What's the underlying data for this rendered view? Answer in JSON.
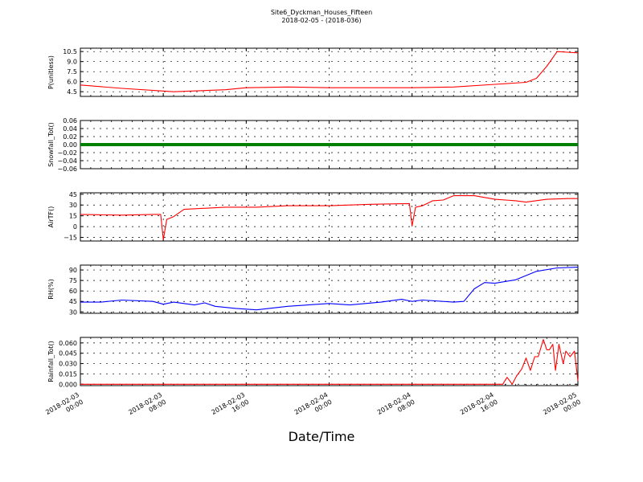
{
  "title": "Site6_Dyckman_Houses_Fifteen",
  "subtitle": "2018-02-05 - (2018-036)",
  "x_axis": {
    "label": "Date/Time",
    "ticks": [
      {
        "line1": "2018-02-03",
        "line2": "00:00"
      },
      {
        "line1": "2018-02-03",
        "line2": "08:00"
      },
      {
        "line1": "2018-02-03",
        "line2": "16:00"
      },
      {
        "line1": "2018-02-04",
        "line2": "00:00"
      },
      {
        "line1": "2018-02-04",
        "line2": "08:00"
      },
      {
        "line1": "2018-02-04",
        "line2": "16:00"
      },
      {
        "line1": "2018-02-05",
        "line2": "00:00"
      }
    ]
  },
  "chart_data": [
    {
      "type": "line",
      "ylabel": "P(unitless)",
      "ylim": [
        3.8,
        11.0
      ],
      "yticks": [
        "4.5",
        "6.0",
        "7.5",
        "9.0",
        "10.5"
      ],
      "ytick_values": [
        4.5,
        6.0,
        7.5,
        9.0,
        10.5
      ],
      "grid": true,
      "series": [
        {
          "color": "#ff0000",
          "x": [
            "2018-02-03 00:00",
            "2018-02-03 04:00",
            "2018-02-03 08:00",
            "2018-02-03 09:00",
            "2018-02-03 14:00",
            "2018-02-03 16:00",
            "2018-02-03 20:00",
            "2018-02-04 00:00",
            "2018-02-04 04:00",
            "2018-02-04 08:00",
            "2018-02-04 12:00",
            "2018-02-04 16:00",
            "2018-02-04 19:00",
            "2018-02-04 20:00",
            "2018-02-04 21:00",
            "2018-02-04 22:00",
            "2018-02-04 23:00",
            "2018-02-05 00:00"
          ],
          "y": [
            5.5,
            5.0,
            4.6,
            4.5,
            4.8,
            5.1,
            5.2,
            5.1,
            5.1,
            5.1,
            5.2,
            5.6,
            5.9,
            6.5,
            8.3,
            10.5,
            10.4,
            10.3
          ]
        }
      ]
    },
    {
      "type": "scatter",
      "ylabel": "Snowfall_Tot()",
      "ylim": [
        -0.06,
        0.06
      ],
      "yticks": [
        "−0.06",
        "−0.04",
        "−0.02",
        "0.00",
        "0.02",
        "0.04",
        "0.06"
      ],
      "ytick_values": [
        -0.06,
        -0.04,
        -0.02,
        0.0,
        0.02,
        0.04,
        0.06
      ],
      "grid": true,
      "series": [
        {
          "color": "#008000",
          "x": [
            "2018-02-03 00:00",
            "2018-02-05 00:00"
          ],
          "y": [
            0.0,
            0.0
          ]
        }
      ]
    },
    {
      "type": "line",
      "ylabel": "AirTF()",
      "ylim": [
        -20,
        47
      ],
      "yticks": [
        "−15",
        "0",
        "15",
        "30",
        "45"
      ],
      "ytick_values": [
        -15,
        0,
        15,
        30,
        45
      ],
      "grid": true,
      "series": [
        {
          "color": "#ff0000",
          "x": [
            "2018-02-03 00:00",
            "2018-02-03 04:00",
            "2018-02-03 07:00",
            "2018-02-03 07:45",
            "2018-02-03 08:00",
            "2018-02-03 08:20",
            "2018-02-03 09:00",
            "2018-02-03 10:00",
            "2018-02-03 14:00",
            "2018-02-03 17:00",
            "2018-02-03 20:00",
            "2018-02-04 00:00",
            "2018-02-04 04:00",
            "2018-02-04 07:45",
            "2018-02-04 08:00",
            "2018-02-04 08:20",
            "2018-02-04 09:00",
            "2018-02-04 10:00",
            "2018-02-04 11:00",
            "2018-02-04 12:00",
            "2018-02-04 14:00",
            "2018-02-04 16:00",
            "2018-02-04 18:00",
            "2018-02-04 19:00",
            "2018-02-04 21:00",
            "2018-02-04 23:00",
            "2018-02-05 00:00"
          ],
          "y": [
            17,
            16,
            17,
            17,
            -18,
            10,
            14,
            24,
            27,
            27,
            29,
            29,
            31,
            32,
            1,
            27,
            29,
            36,
            37,
            43,
            43,
            38,
            36,
            34,
            38,
            39,
            39
          ]
        }
      ]
    },
    {
      "type": "line",
      "ylabel": "RH(%)",
      "ylim": [
        28,
        97
      ],
      "yticks": [
        "30",
        "45",
        "60",
        "75",
        "90"
      ],
      "ytick_values": [
        30,
        45,
        60,
        75,
        90
      ],
      "grid": true,
      "series": [
        {
          "color": "#0000ff",
          "x": [
            "2018-02-03 00:00",
            "2018-02-03 02:00",
            "2018-02-03 04:00",
            "2018-02-03 07:00",
            "2018-02-03 08:00",
            "2018-02-03 09:00",
            "2018-02-03 11:00",
            "2018-02-03 12:00",
            "2018-02-03 13:00",
            "2018-02-03 15:00",
            "2018-02-03 17:00",
            "2018-02-03 20:00",
            "2018-02-04 00:00",
            "2018-02-04 02:00",
            "2018-02-04 05:00",
            "2018-02-04 07:00",
            "2018-02-04 08:00",
            "2018-02-04 09:00",
            "2018-02-04 12:00",
            "2018-02-04 13:00",
            "2018-02-04 14:00",
            "2018-02-04 15:00",
            "2018-02-04 16:00",
            "2018-02-04 18:00",
            "2018-02-04 20:00",
            "2018-02-04 22:00",
            "2018-02-05 00:00"
          ],
          "y": [
            44,
            44,
            47,
            45,
            41,
            44,
            40,
            43,
            38,
            35,
            33,
            38,
            42,
            40,
            44,
            48,
            45,
            47,
            44,
            45,
            63,
            72,
            71,
            76,
            88,
            93,
            94
          ]
        }
      ]
    },
    {
      "type": "line",
      "ylabel": "Rainfall_Tot()",
      "ylim": [
        -0.002,
        0.068
      ],
      "yticks": [
        "0.000",
        "0.015",
        "0.030",
        "0.045",
        "0.060"
      ],
      "ytick_values": [
        0.0,
        0.015,
        0.03,
        0.045,
        0.06
      ],
      "grid": true,
      "series": [
        {
          "color": "#ff0000",
          "x": [
            "2018-02-03 00:00",
            "2018-02-04 16:45",
            "2018-02-04 17:10",
            "2018-02-04 17:40",
            "2018-02-04 18:05",
            "2018-02-04 18:35",
            "2018-02-04 19:00",
            "2018-02-04 19:25",
            "2018-02-04 19:50",
            "2018-02-04 20:10",
            "2018-02-04 20:40",
            "2018-02-04 21:00",
            "2018-02-04 21:15",
            "2018-02-04 21:35",
            "2018-02-04 21:50",
            "2018-02-04 22:10",
            "2018-02-04 22:35",
            "2018-02-04 22:50",
            "2018-02-04 23:15",
            "2018-02-04 23:40",
            "2018-02-05 00:00"
          ],
          "y": [
            0.0,
            0.0,
            0.01,
            0.0,
            0.012,
            0.022,
            0.038,
            0.02,
            0.04,
            0.04,
            0.065,
            0.05,
            0.05,
            0.058,
            0.02,
            0.058,
            0.03,
            0.048,
            0.04,
            0.048,
            0.005
          ]
        }
      ]
    }
  ]
}
